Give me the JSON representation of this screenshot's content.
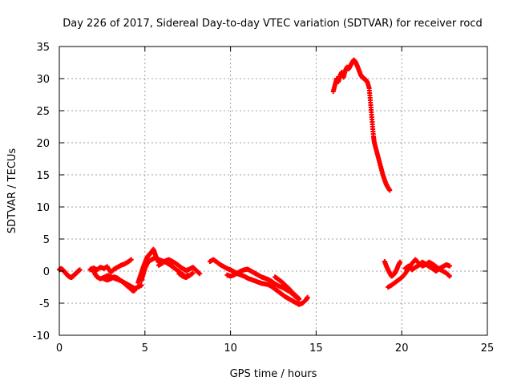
{
  "chart_data": {
    "type": "scatter",
    "title": "Day 226 of 2017, Sidereal Day-to-day VTEC variation (SDTVAR) for receiver rocd",
    "xlabel": "GPS time / hours",
    "ylabel": "SDTVAR / TECUs",
    "xlim": [
      0,
      25
    ],
    "ylim": [
      -10,
      35
    ],
    "xticks": [
      0,
      5,
      10,
      15,
      20,
      25
    ],
    "yticks": [
      -10,
      -5,
      0,
      5,
      10,
      15,
      20,
      25,
      30,
      35
    ],
    "grid": true,
    "marker": "plus",
    "color": "#ff0000",
    "series": [
      {
        "name": "SDTVAR",
        "segments": [
          [
            [
              0.0,
              0.2
            ],
            [
              0.1,
              0.4
            ],
            [
              0.2,
              0.2
            ],
            [
              0.3,
              -0.1
            ],
            [
              0.4,
              -0.4
            ],
            [
              0.5,
              -0.7
            ],
            [
              0.6,
              -0.9
            ],
            [
              0.7,
              -1.0
            ],
            [
              0.8,
              -0.8
            ],
            [
              0.9,
              -0.5
            ],
            [
              1.0,
              -0.3
            ],
            [
              1.1,
              0.0
            ],
            [
              1.2,
              0.2
            ]
          ],
          [
            [
              1.8,
              0.2
            ],
            [
              1.9,
              0.4
            ],
            [
              2.0,
              0.0
            ],
            [
              2.1,
              -0.5
            ],
            [
              2.2,
              -0.9
            ],
            [
              2.4,
              -1.2
            ],
            [
              2.6,
              -1.0
            ],
            [
              2.8,
              -0.7
            ],
            [
              3.0,
              -0.9
            ],
            [
              3.2,
              -1.1
            ],
            [
              3.4,
              -1.3
            ],
            [
              3.6,
              -1.5
            ],
            [
              3.8,
              -1.9
            ],
            [
              4.0,
              -2.4
            ],
            [
              4.2,
              -2.8
            ],
            [
              4.3,
              -3.1
            ],
            [
              4.4,
              -3.0
            ]
          ],
          [
            [
              2.0,
              0.5
            ],
            [
              2.2,
              0.2
            ],
            [
              2.4,
              0.6
            ],
            [
              2.6,
              0.4
            ],
            [
              2.8,
              0.7
            ],
            [
              3.0,
              -0.2
            ],
            [
              3.2,
              0.3
            ],
            [
              3.4,
              0.6
            ],
            [
              3.6,
              0.9
            ],
            [
              3.8,
              1.1
            ],
            [
              4.0,
              1.4
            ],
            [
              4.2,
              1.8
            ]
          ],
          [
            [
              2.6,
              -1.2
            ],
            [
              2.8,
              -1.4
            ],
            [
              3.0,
              -1.2
            ],
            [
              3.2,
              -0.9
            ],
            [
              3.4,
              -1.1
            ],
            [
              3.6,
              -1.5
            ],
            [
              3.8,
              -1.8
            ],
            [
              4.0,
              -2.1
            ],
            [
              4.2,
              -2.4
            ],
            [
              4.4,
              -2.7
            ],
            [
              4.6,
              -2.5
            ],
            [
              4.8,
              -2.2
            ]
          ],
          [
            [
              4.6,
              -1.8
            ],
            [
              4.7,
              -1.0
            ],
            [
              4.8,
              -0.2
            ],
            [
              4.9,
              0.6
            ],
            [
              5.0,
              1.3
            ],
            [
              5.1,
              2.0
            ],
            [
              5.2,
              2.4
            ],
            [
              5.3,
              2.7
            ],
            [
              5.4,
              3.0
            ],
            [
              5.5,
              3.4
            ],
            [
              5.6,
              2.6
            ],
            [
              5.7,
              1.9
            ],
            [
              5.8,
              1.4
            ]
          ],
          [
            [
              4.8,
              -1.5
            ],
            [
              4.9,
              -0.5
            ],
            [
              5.0,
              0.4
            ],
            [
              5.1,
              1.0
            ],
            [
              5.2,
              1.5
            ],
            [
              5.4,
              1.8
            ],
            [
              5.6,
              2.1
            ],
            [
              5.8,
              1.8
            ],
            [
              6.0,
              1.6
            ],
            [
              6.2,
              1.4
            ],
            [
              6.4,
              1.1
            ],
            [
              6.6,
              0.7
            ],
            [
              6.8,
              0.3
            ],
            [
              7.0,
              -0.1
            ],
            [
              7.2,
              -0.5
            ],
            [
              7.4,
              -0.9
            ],
            [
              7.5,
              -0.6
            ]
          ],
          [
            [
              5.8,
              0.9
            ],
            [
              6.0,
              1.2
            ],
            [
              6.2,
              1.6
            ],
            [
              6.4,
              1.8
            ],
            [
              6.6,
              1.5
            ],
            [
              6.8,
              1.2
            ],
            [
              7.0,
              0.8
            ],
            [
              7.2,
              0.4
            ],
            [
              7.4,
              0.1
            ],
            [
              7.6,
              0.3
            ],
            [
              7.8,
              0.6
            ],
            [
              8.0,
              0.1
            ],
            [
              8.2,
              -0.4
            ]
          ],
          [
            [
              7.0,
              -0.4
            ],
            [
              7.2,
              -0.8
            ],
            [
              7.4,
              -1.0
            ],
            [
              7.6,
              -0.7
            ],
            [
              7.8,
              -0.3
            ]
          ],
          [
            [
              8.8,
              1.5
            ],
            [
              9.0,
              1.8
            ],
            [
              9.2,
              1.4
            ],
            [
              9.4,
              1.0
            ],
            [
              9.6,
              0.7
            ],
            [
              9.8,
              0.4
            ],
            [
              10.0,
              0.2
            ],
            [
              10.2,
              -0.1
            ],
            [
              10.4,
              -0.4
            ],
            [
              10.6,
              -0.6
            ],
            [
              10.8,
              -0.8
            ],
            [
              11.0,
              -1.1
            ],
            [
              11.2,
              -1.3
            ],
            [
              11.4,
              -1.5
            ],
            [
              11.6,
              -1.7
            ],
            [
              11.8,
              -1.9
            ],
            [
              12.0,
              -2.0
            ],
            [
              12.2,
              -2.1
            ],
            [
              12.4,
              -2.4
            ],
            [
              12.6,
              -2.8
            ],
            [
              12.8,
              -3.2
            ],
            [
              13.0,
              -3.6
            ],
            [
              13.2,
              -4.0
            ],
            [
              13.4,
              -4.3
            ],
            [
              13.6,
              -4.6
            ],
            [
              13.8,
              -4.9
            ],
            [
              14.0,
              -5.2
            ],
            [
              14.2,
              -5.0
            ],
            [
              14.4,
              -4.5
            ],
            [
              14.5,
              -4.1
            ]
          ],
          [
            [
              9.8,
              -0.6
            ],
            [
              10.0,
              -0.8
            ],
            [
              10.2,
              -0.6
            ],
            [
              10.4,
              -0.3
            ],
            [
              10.6,
              0.0
            ],
            [
              10.8,
              0.2
            ],
            [
              11.0,
              0.3
            ],
            [
              11.2,
              0.0
            ],
            [
              11.4,
              -0.3
            ],
            [
              11.6,
              -0.6
            ],
            [
              11.8,
              -0.9
            ],
            [
              12.0,
              -1.1
            ],
            [
              12.2,
              -1.3
            ],
            [
              12.4,
              -1.6
            ],
            [
              12.6,
              -2.0
            ],
            [
              12.8,
              -2.3
            ],
            [
              13.0,
              -2.5
            ],
            [
              13.2,
              -2.8
            ],
            [
              13.4,
              -3.1
            ],
            [
              13.6,
              -3.5
            ],
            [
              13.8,
              -4.0
            ],
            [
              14.0,
              -4.4
            ]
          ],
          [
            [
              12.6,
              -0.9
            ],
            [
              12.8,
              -1.3
            ],
            [
              13.0,
              -1.7
            ],
            [
              13.2,
              -2.2
            ],
            [
              13.4,
              -2.7
            ],
            [
              13.6,
              -3.3
            ],
            [
              13.8,
              -3.8
            ],
            [
              14.0,
              -4.3
            ]
          ],
          [
            [
              16.0,
              28.0
            ],
            [
              16.1,
              29.0
            ],
            [
              16.2,
              30.0
            ],
            [
              16.3,
              29.5
            ],
            [
              16.4,
              30.5
            ],
            [
              16.5,
              31.0
            ],
            [
              16.6,
              30.2
            ],
            [
              16.7,
              31.2
            ],
            [
              16.8,
              31.8
            ],
            [
              16.9,
              31.5
            ],
            [
              17.0,
              32.0
            ],
            [
              17.1,
              32.5
            ],
            [
              17.2,
              32.9
            ],
            [
              17.3,
              32.6
            ],
            [
              17.4,
              32.0
            ],
            [
              17.5,
              31.3
            ],
            [
              17.6,
              30.6
            ],
            [
              17.7,
              30.2
            ],
            [
              17.8,
              30.0
            ],
            [
              17.9,
              29.8
            ],
            [
              18.0,
              29.4
            ],
            [
              18.1,
              28.5
            ],
            [
              18.15,
              27.0
            ],
            [
              18.2,
              25.5
            ],
            [
              18.25,
              24.0
            ],
            [
              18.3,
              22.5
            ],
            [
              18.35,
              21.0
            ],
            [
              18.4,
              20.0
            ],
            [
              18.5,
              19.0
            ],
            [
              18.6,
              18.0
            ],
            [
              18.7,
              17.0
            ],
            [
              18.8,
              16.0
            ],
            [
              18.9,
              15.0
            ],
            [
              19.0,
              14.2
            ],
            [
              19.1,
              13.5
            ],
            [
              19.2,
              13.0
            ],
            [
              19.3,
              12.6
            ]
          ],
          [
            [
              19.0,
              1.5
            ],
            [
              19.1,
              0.8
            ],
            [
              19.2,
              0.2
            ],
            [
              19.3,
              -0.3
            ],
            [
              19.4,
              -0.8
            ],
            [
              19.5,
              -0.6
            ],
            [
              19.6,
              -0.3
            ],
            [
              19.7,
              0.2
            ],
            [
              19.8,
              0.9
            ],
            [
              19.9,
              1.4
            ]
          ],
          [
            [
              19.2,
              -2.5
            ],
            [
              19.4,
              -2.2
            ],
            [
              19.6,
              -1.8
            ],
            [
              19.8,
              -1.4
            ],
            [
              20.0,
              -1.0
            ],
            [
              20.2,
              -0.4
            ],
            [
              20.4,
              0.4
            ],
            [
              20.6,
              1.2
            ],
            [
              20.8,
              1.8
            ],
            [
              21.0,
              1.2
            ],
            [
              21.2,
              0.8
            ],
            [
              21.4,
              1.0
            ],
            [
              21.6,
              1.4
            ],
            [
              21.8,
              1.1
            ],
            [
              22.0,
              0.7
            ],
            [
              22.2,
              0.3
            ],
            [
              22.4,
              0.0
            ],
            [
              22.6,
              -0.3
            ],
            [
              22.8,
              -0.8
            ]
          ],
          [
            [
              20.2,
              0.4
            ],
            [
              20.4,
              0.8
            ],
            [
              20.6,
              0.2
            ],
            [
              20.8,
              0.6
            ],
            [
              21.0,
              0.9
            ],
            [
              21.2,
              1.4
            ],
            [
              21.4,
              1.1
            ],
            [
              21.6,
              0.7
            ],
            [
              21.8,
              0.4
            ],
            [
              22.0,
              0.0
            ],
            [
              22.2,
              0.4
            ],
            [
              22.4,
              0.7
            ],
            [
              22.6,
              1.0
            ],
            [
              22.8,
              0.8
            ]
          ]
        ]
      }
    ]
  }
}
